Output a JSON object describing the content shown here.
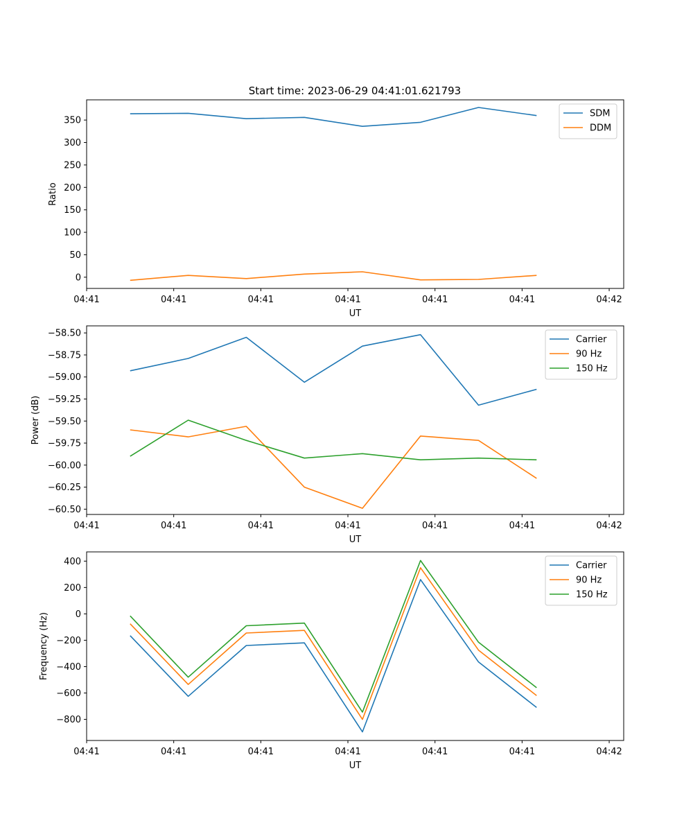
{
  "figure": {
    "title": "Start time: 2023-06-29 04:41:01.621793"
  },
  "chart_data": [
    {
      "type": "line",
      "title": "Start time: 2023-06-29 04:41:01.621793",
      "xlabel": "UT",
      "ylabel": "Ratio",
      "x": [
        1,
        2,
        3,
        4,
        5,
        6,
        7,
        8
      ],
      "xlim": [
        0.25,
        9.5
      ],
      "x_tick_positions": [
        0.25,
        1.75,
        3.25,
        4.75,
        6.25,
        7.75,
        9.25
      ],
      "x_tick_labels": [
        "04:41",
        "04:41",
        "04:41",
        "04:41",
        "04:41",
        "04:41",
        "04:42"
      ],
      "ylim": [
        -25,
        395
      ],
      "y_ticks": [
        0,
        50,
        100,
        150,
        200,
        250,
        300,
        350
      ],
      "y_tick_labels": [
        "0",
        "50",
        "100",
        "150",
        "200",
        "250",
        "300",
        "350"
      ],
      "legend_position": "upper-right",
      "series": [
        {
          "name": "SDM",
          "color": "#1f77b4",
          "values": [
            364,
            365,
            353,
            356,
            336,
            345,
            378,
            360
          ]
        },
        {
          "name": "DDM",
          "color": "#ff7f0e",
          "values": [
            -7,
            4,
            -3,
            7,
            12,
            -6,
            -5,
            4
          ]
        }
      ]
    },
    {
      "type": "line",
      "title": "",
      "xlabel": "UT",
      "ylabel": "Power (dB)",
      "x": [
        1,
        2,
        3,
        4,
        5,
        6,
        7,
        8
      ],
      "xlim": [
        0.25,
        9.5
      ],
      "x_tick_positions": [
        0.25,
        1.75,
        3.25,
        4.75,
        6.25,
        7.75,
        9.25
      ],
      "x_tick_labels": [
        "04:41",
        "04:41",
        "04:41",
        "04:41",
        "04:41",
        "04:41",
        "04:42"
      ],
      "ylim": [
        -60.56,
        -58.42
      ],
      "y_ticks": [
        -60.5,
        -60.25,
        -60.0,
        -59.75,
        -59.5,
        -59.25,
        -59.0,
        -58.75,
        -58.5
      ],
      "y_tick_labels": [
        "−60.50",
        "−60.25",
        "−60.00",
        "−59.75",
        "−59.50",
        "−59.25",
        "−59.00",
        "−58.75",
        "−58.50"
      ],
      "legend_position": "upper-right",
      "series": [
        {
          "name": "Carrier",
          "color": "#1f77b4",
          "values": [
            -58.93,
            -58.79,
            -58.55,
            -59.06,
            -58.65,
            -58.52,
            -59.32,
            -59.14
          ]
        },
        {
          "name": "90 Hz",
          "color": "#ff7f0e",
          "values": [
            -59.6,
            -59.68,
            -59.56,
            -60.25,
            -60.49,
            -59.67,
            -59.72,
            -60.15
          ]
        },
        {
          "name": "150 Hz",
          "color": "#2ca02c",
          "values": [
            -59.9,
            -59.49,
            -59.72,
            -59.92,
            -59.87,
            -59.94,
            -59.92,
            -59.94
          ]
        }
      ]
    },
    {
      "type": "line",
      "title": "",
      "xlabel": "UT",
      "ylabel": "Frequency (Hz)",
      "x": [
        1,
        2,
        3,
        4,
        5,
        6,
        7,
        8
      ],
      "xlim": [
        0.25,
        9.5
      ],
      "x_tick_positions": [
        0.25,
        1.75,
        3.25,
        4.75,
        6.25,
        7.75,
        9.25
      ],
      "x_tick_labels": [
        "04:41",
        "04:41",
        "04:41",
        "04:41",
        "04:41",
        "04:41",
        "04:42"
      ],
      "ylim": [
        -960,
        470
      ],
      "y_ticks": [
        -800,
        -600,
        -400,
        -200,
        0,
        200,
        400
      ],
      "y_tick_labels": [
        "−800",
        "−600",
        "−400",
        "−200",
        "0",
        "200",
        "400"
      ],
      "legend_position": "upper-right",
      "series": [
        {
          "name": "Carrier",
          "color": "#1f77b4",
          "values": [
            -165,
            -625,
            -240,
            -220,
            -895,
            260,
            -365,
            -710
          ]
        },
        {
          "name": "90 Hz",
          "color": "#ff7f0e",
          "values": [
            -75,
            -535,
            -145,
            -125,
            -800,
            350,
            -275,
            -620
          ]
        },
        {
          "name": "150 Hz",
          "color": "#2ca02c",
          "values": [
            -15,
            -480,
            -90,
            -70,
            -745,
            405,
            -215,
            -560
          ]
        }
      ]
    }
  ]
}
